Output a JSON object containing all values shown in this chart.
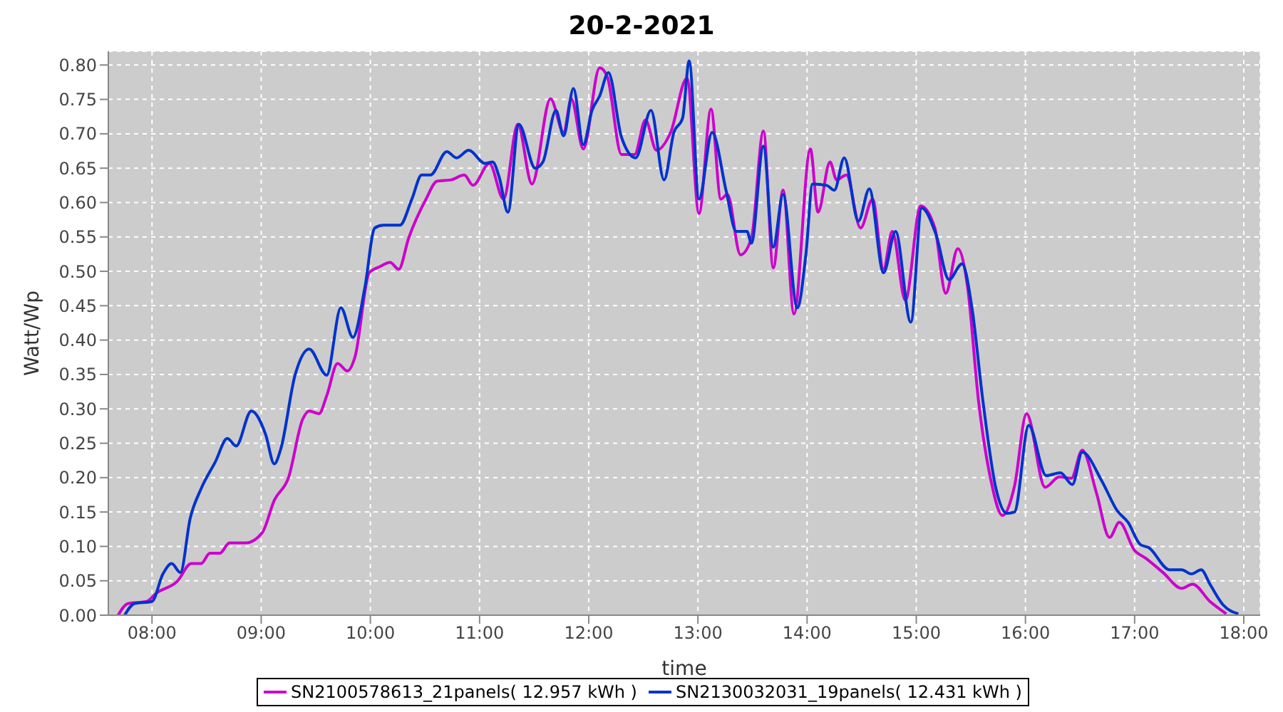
{
  "chart_data": {
    "type": "line",
    "title": "20-2-2021",
    "xlabel": "time",
    "ylabel": "Watt/Wp",
    "xlim": [
      7.6,
      18.15
    ],
    "xticks": [
      {
        "value": 8,
        "label": "08:00"
      },
      {
        "value": 9,
        "label": "09:00"
      },
      {
        "value": 10,
        "label": "10:00"
      },
      {
        "value": 11,
        "label": "11:00"
      },
      {
        "value": 12,
        "label": "12:00"
      },
      {
        "value": 13,
        "label": "13:00"
      },
      {
        "value": 14,
        "label": "14:00"
      },
      {
        "value": 15,
        "label": "15:00"
      },
      {
        "value": 16,
        "label": "16:00"
      },
      {
        "value": 17,
        "label": "17:00"
      },
      {
        "value": 18,
        "label": "18:00"
      }
    ],
    "ylim": [
      0,
      0.82
    ],
    "yticks": [
      {
        "value": 0,
        "label": "0.00"
      },
      {
        "value": 0.05,
        "label": "0.05"
      },
      {
        "value": 0.1,
        "label": "0.10"
      },
      {
        "value": 0.15,
        "label": "0.15"
      },
      {
        "value": 0.2,
        "label": "0.20"
      },
      {
        "value": 0.25,
        "label": "0.25"
      },
      {
        "value": 0.3,
        "label": "0.30"
      },
      {
        "value": 0.35,
        "label": "0.35"
      },
      {
        "value": 0.4,
        "label": "0.40"
      },
      {
        "value": 0.45,
        "label": "0.45"
      },
      {
        "value": 0.5,
        "label": "0.50"
      },
      {
        "value": 0.55,
        "label": "0.55"
      },
      {
        "value": 0.6,
        "label": "0.60"
      },
      {
        "value": 0.65,
        "label": "0.65"
      },
      {
        "value": 0.7,
        "label": "0.70"
      },
      {
        "value": 0.75,
        "label": "0.75"
      },
      {
        "value": 0.8,
        "label": "0.80"
      }
    ],
    "grid": true,
    "legend": "bottom",
    "marker": "none",
    "line_style": "solid",
    "series": [
      {
        "name": "SN2100578613_21panels( 12.957 kWh )",
        "color": "#cc00cc",
        "x": [
          7.69,
          7.78,
          7.95,
          8.04,
          8.23,
          8.36,
          8.45,
          8.53,
          8.62,
          8.71,
          8.86,
          9.01,
          9.12,
          9.25,
          9.38,
          9.44,
          9.53,
          9.6,
          9.7,
          9.79,
          9.86,
          9.99,
          10.09,
          10.18,
          10.26,
          10.35,
          10.51,
          10.61,
          10.74,
          10.86,
          10.94,
          11.09,
          11.22,
          11.35,
          11.48,
          11.65,
          11.77,
          11.84,
          11.95,
          12.1,
          12.17,
          12.3,
          12.42,
          12.52,
          12.62,
          12.75,
          12.9,
          13.01,
          13.12,
          13.21,
          13.27,
          13.39,
          13.49,
          13.6,
          13.69,
          13.78,
          13.88,
          14.03,
          14.1,
          14.21,
          14.27,
          14.36,
          14.49,
          14.6,
          14.7,
          14.78,
          14.9,
          15.04,
          15.17,
          15.27,
          15.38,
          15.47,
          15.57,
          15.68,
          15.79,
          15.9,
          16.01,
          16.18,
          16.31,
          16.42,
          16.52,
          16.65,
          16.77,
          16.86,
          17.0,
          17.1,
          17.26,
          17.43,
          17.53,
          17.69,
          17.84
        ],
        "values": [
          0,
          0.017,
          0.02,
          0.032,
          0.049,
          0.075,
          0.075,
          0.09,
          0.09,
          0.105,
          0.105,
          0.12,
          0.167,
          0.2,
          0.285,
          0.297,
          0.293,
          0.319,
          0.366,
          0.355,
          0.376,
          0.498,
          0.507,
          0.513,
          0.503,
          0.548,
          0.605,
          0.631,
          0.633,
          0.64,
          0.625,
          0.657,
          0.605,
          0.714,
          0.627,
          0.751,
          0.702,
          0.751,
          0.678,
          0.796,
          0.783,
          0.67,
          0.67,
          0.72,
          0.676,
          0.702,
          0.781,
          0.584,
          0.736,
          0.605,
          0.612,
          0.524,
          0.548,
          0.704,
          0.505,
          0.618,
          0.438,
          0.678,
          0.586,
          0.659,
          0.633,
          0.64,
          0.563,
          0.605,
          0.503,
          0.558,
          0.458,
          0.595,
          0.563,
          0.468,
          0.533,
          0.477,
          0.312,
          0.199,
          0.145,
          0.188,
          0.293,
          0.186,
          0.201,
          0.199,
          0.24,
          0.178,
          0.113,
          0.135,
          0.094,
          0.083,
          0.062,
          0.039,
          0.045,
          0.02,
          0.002
        ]
      },
      {
        "name": "SN2130032031_19panels( 12.431 kWh )",
        "color": "#0033cc",
        "x": [
          7.75,
          7.84,
          8.0,
          8.1,
          8.18,
          8.26,
          8.35,
          8.45,
          8.58,
          8.69,
          8.77,
          8.91,
          9.04,
          9.12,
          9.18,
          9.31,
          9.44,
          9.6,
          9.73,
          9.84,
          9.95,
          10.04,
          10.12,
          10.27,
          10.38,
          10.47,
          10.55,
          10.7,
          10.79,
          10.9,
          11.05,
          11.12,
          11.18,
          11.26,
          11.36,
          11.51,
          11.58,
          11.7,
          11.77,
          11.86,
          11.95,
          12.03,
          12.1,
          12.18,
          12.3,
          12.43,
          12.57,
          12.69,
          12.78,
          12.86,
          12.92,
          13.01,
          13.13,
          13.26,
          13.35,
          13.45,
          13.49,
          13.6,
          13.69,
          13.78,
          13.91,
          13.99,
          14.05,
          14.18,
          14.25,
          14.34,
          14.47,
          14.57,
          14.7,
          14.81,
          14.95,
          15.05,
          15.18,
          15.3,
          15.42,
          15.51,
          15.61,
          15.73,
          15.83,
          15.9,
          16.03,
          16.19,
          16.32,
          16.43,
          16.52,
          16.7,
          16.84,
          16.94,
          17.05,
          17.13,
          17.32,
          17.43,
          17.52,
          17.61,
          17.69,
          17.81,
          17.95
        ],
        "values": [
          0,
          0.017,
          0.02,
          0.06,
          0.075,
          0.062,
          0.141,
          0.184,
          0.223,
          0.257,
          0.246,
          0.297,
          0.263,
          0.22,
          0.242,
          0.349,
          0.387,
          0.349,
          0.447,
          0.404,
          0.477,
          0.563,
          0.567,
          0.567,
          0.605,
          0.64,
          0.64,
          0.674,
          0.665,
          0.676,
          0.657,
          0.659,
          0.637,
          0.586,
          0.714,
          0.65,
          0.659,
          0.734,
          0.697,
          0.766,
          0.684,
          0.734,
          0.755,
          0.789,
          0.695,
          0.665,
          0.734,
          0.633,
          0.702,
          0.723,
          0.806,
          0.605,
          0.702,
          0.616,
          0.558,
          0.558,
          0.541,
          0.682,
          0.535,
          0.612,
          0.447,
          0.526,
          0.627,
          0.625,
          0.618,
          0.665,
          0.573,
          0.62,
          0.498,
          0.558,
          0.426,
          0.592,
          0.554,
          0.488,
          0.511,
          0.447,
          0.312,
          0.184,
          0.148,
          0.15,
          0.276,
          0.203,
          0.207,
          0.19,
          0.237,
          0.195,
          0.152,
          0.135,
          0.103,
          0.098,
          0.066,
          0.066,
          0.06,
          0.066,
          0.045,
          0.015,
          0.002
        ]
      }
    ]
  }
}
